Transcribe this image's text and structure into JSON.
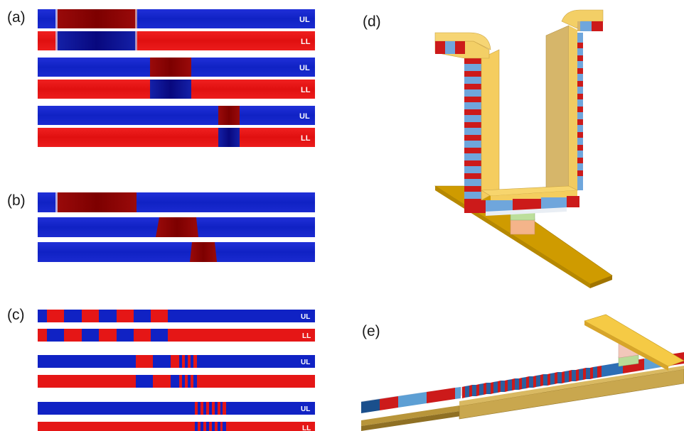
{
  "panels": {
    "a": "(a)",
    "b": "(b)",
    "c": "(c)",
    "d": "(d)",
    "e": "(e)"
  },
  "layer_labels": {
    "upper": "UL",
    "lower": "LL"
  },
  "colors": {
    "blue": "#1020c8",
    "red": "#e81010",
    "dark_red": "#8a0000",
    "dark_blue": "#0a0a90",
    "light_blue": "#6fa6dc",
    "gold": "#f5cc5c",
    "gold_dark": "#d9ab3a",
    "tan": "#d2b46a",
    "strip_gold": "#c99400",
    "green_block": "#b9dc9a",
    "peach_block": "#f3b992",
    "pink_block": "#f1c9bd"
  }
}
